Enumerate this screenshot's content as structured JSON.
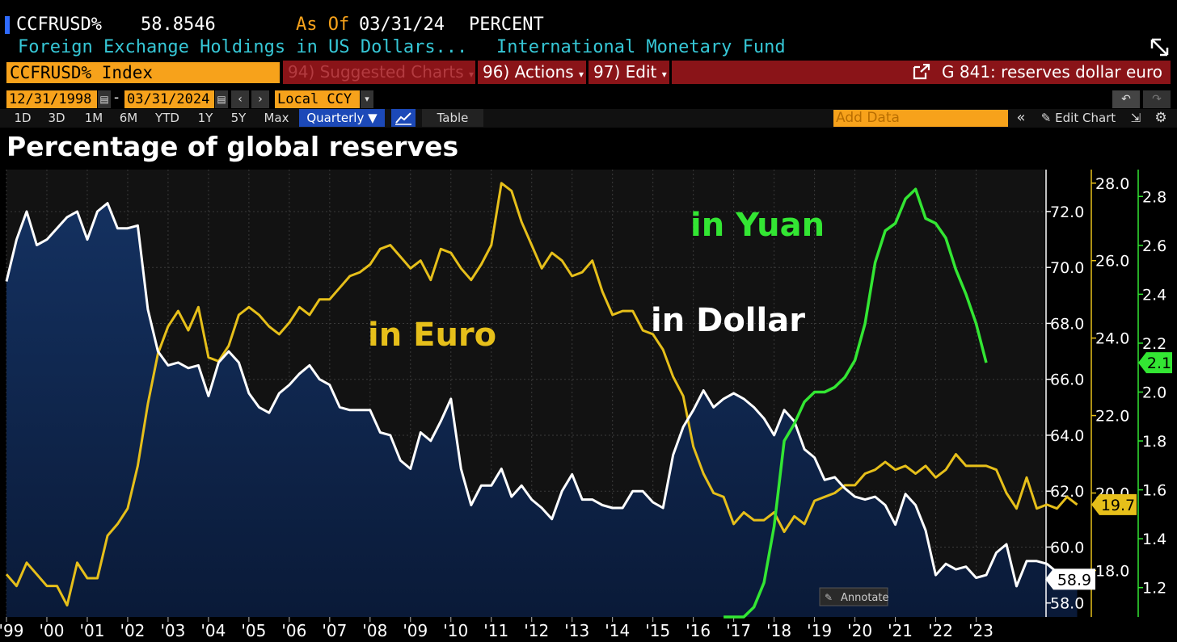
{
  "header": {
    "ticker": "CCFRUSD%",
    "last_value": "58.8546",
    "as_of_label": "As Of",
    "as_of_date": "03/31/24",
    "unit": "PERCENT",
    "description": "Foreign Exchange Holdings in US Dollars...",
    "source": "International Monetary Fund"
  },
  "toolbar": {
    "security": "CCFRUSD% Index",
    "suggested_charts": "94) Suggested Charts",
    "actions": "96) Actions",
    "edit": "97) Edit",
    "chart_id": "G 841: reserves dollar euro",
    "start_date": "12/31/1998",
    "end_date": "03/31/2024",
    "currency": "Local CCY",
    "periods": [
      "1D",
      "3D",
      "1M",
      "6M",
      "YTD",
      "1Y",
      "5Y",
      "Max"
    ],
    "frequency": "Quarterly",
    "table_label": "Table",
    "add_data_placeholder": "Add Data",
    "edit_chart": "Edit Chart",
    "annotate": "Annotate"
  },
  "colors": {
    "dollar": "#ffffff",
    "euro": "#e6bf1a",
    "yuan": "#33e633",
    "area_top": "#143160",
    "area_bottom": "#0a1a38",
    "plot_bg": "#121212",
    "accent_orange": "#f7a21b",
    "bar_red": "#8a1418"
  },
  "chart_data": {
    "type": "line",
    "title": "Percentage of global reserves",
    "x_tick_labels": [
      "'99",
      "'00",
      "'01",
      "'02",
      "'03",
      "'04",
      "'05",
      "'06",
      "'07",
      "'08",
      "'09",
      "'10",
      "'11",
      "'12",
      "'13",
      "'14",
      "'15",
      "'16",
      "'17",
      "'18",
      "'19",
      "'20",
      "'21",
      "'22",
      "'23"
    ],
    "x_range": [
      1999.0,
      2024.25
    ],
    "grid": true,
    "axes": {
      "dollar": {
        "side": "right",
        "ticks": [
          "58.0",
          "60.0",
          "62.0",
          "64.0",
          "66.0",
          "68.0",
          "70.0",
          "72.0"
        ],
        "ylim": [
          57.5,
          73.5
        ],
        "last_label": "58.9"
      },
      "euro": {
        "side": "right",
        "ticks": [
          "18.0",
          "20.0",
          "22.0",
          "24.0",
          "26.0",
          "28.0"
        ],
        "ylim": [
          16.8,
          28.35
        ],
        "last_label": "19.7"
      },
      "yuan": {
        "side": "right",
        "ticks": [
          "1.2",
          "1.4",
          "1.6",
          "1.8",
          "2.0",
          "2.2",
          "2.4",
          "2.6",
          "2.8"
        ],
        "ylim": [
          1.08,
          2.91
        ],
        "last_label": "2.1"
      }
    },
    "annotations": [
      {
        "text": "in Yuan",
        "series": "yuan"
      },
      {
        "text": "in Euro",
        "series": "euro"
      },
      {
        "text": "in Dollar",
        "series": "dollar"
      }
    ],
    "series": [
      {
        "key": "dollar",
        "x_start": 1999.0,
        "step": 0.25,
        "values": [
          69.5,
          71.0,
          72.0,
          70.8,
          71.0,
          71.4,
          71.8,
          72.0,
          71.0,
          72.0,
          72.3,
          71.4,
          71.4,
          71.5,
          68.5,
          67.0,
          66.5,
          66.6,
          66.4,
          66.5,
          65.4,
          66.6,
          67.0,
          66.6,
          65.5,
          65.0,
          64.8,
          65.5,
          65.8,
          66.2,
          66.5,
          66.0,
          65.8,
          65.0,
          64.9,
          64.9,
          64.9,
          64.1,
          64.0,
          63.1,
          62.8,
          64.1,
          63.8,
          64.5,
          65.3,
          62.8,
          61.5,
          62.2,
          62.2,
          62.8,
          61.8,
          62.2,
          61.7,
          61.4,
          61.0,
          62.0,
          62.6,
          61.7,
          61.7,
          61.5,
          61.4,
          61.4,
          62.0,
          62.0,
          61.6,
          61.4,
          63.3,
          64.3,
          64.9,
          65.6,
          65.0,
          65.3,
          65.5,
          65.3,
          65.0,
          64.6,
          64.0,
          64.9,
          64.5,
          63.5,
          63.2,
          62.4,
          62.5,
          62.1,
          61.8,
          61.7,
          61.8,
          61.5,
          60.8,
          61.9,
          61.5,
          60.6,
          59.0,
          59.4,
          59.2,
          59.3,
          58.9,
          59.0,
          59.8,
          60.1,
          58.6,
          59.5,
          59.5,
          59.4,
          59.1,
          58.6,
          58.85
        ]
      },
      {
        "key": "euro",
        "x_start": 1999.0,
        "step": 0.25,
        "values": [
          17.9,
          17.6,
          18.2,
          17.9,
          17.6,
          17.6,
          17.1,
          18.2,
          17.8,
          17.8,
          18.9,
          19.2,
          19.6,
          20.7,
          22.3,
          23.6,
          24.3,
          24.7,
          24.2,
          24.8,
          23.5,
          23.4,
          23.8,
          24.6,
          24.8,
          24.6,
          24.3,
          24.1,
          24.4,
          24.8,
          24.6,
          25.0,
          25.0,
          25.3,
          25.6,
          25.7,
          25.9,
          26.3,
          26.4,
          26.1,
          25.8,
          26.0,
          25.5,
          26.3,
          26.2,
          25.8,
          25.5,
          25.9,
          26.4,
          28.0,
          27.8,
          27.0,
          26.4,
          25.8,
          26.2,
          26.0,
          25.6,
          25.7,
          26.0,
          25.2,
          24.6,
          24.7,
          24.7,
          24.2,
          24.1,
          23.7,
          23.0,
          22.5,
          21.2,
          20.5,
          20.0,
          19.9,
          19.2,
          19.5,
          19.3,
          19.3,
          19.5,
          19.0,
          19.4,
          19.2,
          19.8,
          19.9,
          20.0,
          20.2,
          20.2,
          20.5,
          20.6,
          20.8,
          20.6,
          20.7,
          20.5,
          20.7,
          20.4,
          20.6,
          21.0,
          20.7,
          20.7,
          20.7,
          20.6,
          20.0,
          19.6,
          20.4,
          19.6,
          19.7,
          19.6,
          19.9,
          19.7
        ]
      },
      {
        "key": "yuan",
        "x_start": 2016.75,
        "step": 0.25,
        "values": [
          1.08,
          1.08,
          1.08,
          1.12,
          1.22,
          1.45,
          1.8,
          1.87,
          1.96,
          2.0,
          2.0,
          2.02,
          2.06,
          2.13,
          2.28,
          2.53,
          2.66,
          2.69,
          2.79,
          2.83,
          2.71,
          2.69,
          2.63,
          2.5,
          2.4,
          2.28,
          2.12
        ]
      }
    ]
  }
}
